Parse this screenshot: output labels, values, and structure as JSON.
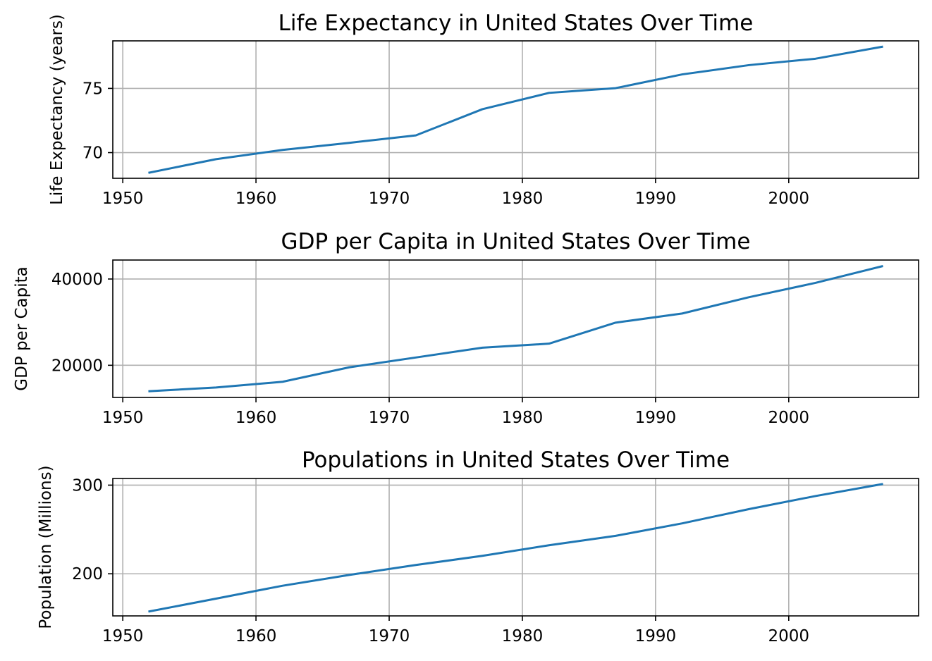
{
  "figure": {
    "background": "#ffffff",
    "line_color": "#1f77b4",
    "grid_color": "#b0b0b0"
  },
  "chart_data": [
    {
      "type": "line",
      "title": "Life Expectancy in United States Over Time",
      "xlabel": "",
      "ylabel": "Life Expectancy (years)",
      "x": [
        1952,
        1957,
        1962,
        1967,
        1972,
        1977,
        1982,
        1987,
        1992,
        1997,
        2002,
        2007
      ],
      "series": [
        {
          "values": [
            68.44,
            69.49,
            70.21,
            70.76,
            71.34,
            73.38,
            74.65,
            75.02,
            76.09,
            76.81,
            77.31,
            78.24
          ]
        }
      ],
      "xlim": [
        1949.25,
        2009.75
      ],
      "ylim": [
        68.0,
        78.7
      ],
      "xticks": [
        1950,
        1960,
        1970,
        1980,
        1990,
        2000
      ],
      "yticks": [
        70,
        75
      ],
      "grid": true,
      "legend": "none"
    },
    {
      "type": "line",
      "title": "GDP per Capita in United States Over Time",
      "xlabel": "",
      "ylabel": "GDP per Capita",
      "x": [
        1952,
        1957,
        1962,
        1967,
        1972,
        1977,
        1982,
        1987,
        1992,
        1997,
        2002,
        2007
      ],
      "series": [
        {
          "values": [
            13990,
            14847,
            16173,
            19530,
            21806,
            24073,
            25010,
            29884,
            32004,
            35767,
            39097,
            42952
          ]
        }
      ],
      "xlim": [
        1949.25,
        2009.75
      ],
      "ylim": [
        12542,
        44400
      ],
      "xticks": [
        1950,
        1960,
        1970,
        1980,
        1990,
        2000
      ],
      "yticks": [
        20000,
        40000
      ],
      "grid": true,
      "legend": "none"
    },
    {
      "type": "line",
      "title": "Populations in United States Over Time",
      "xlabel": "",
      "ylabel": "Population (Millions)",
      "x": [
        1952,
        1957,
        1962,
        1967,
        1972,
        1977,
        1982,
        1987,
        1992,
        1997,
        2002,
        2007
      ],
      "series": [
        {
          "values": [
            157.55,
            171.98,
            186.54,
            198.71,
            209.9,
            220.24,
            232.19,
            242.8,
            256.89,
            272.91,
            287.68,
            301.14
          ]
        }
      ],
      "xlim": [
        1949.25,
        2009.75
      ],
      "ylim": [
        152.5,
        307.5
      ],
      "xticks": [
        1950,
        1960,
        1970,
        1980,
        1990,
        2000
      ],
      "yticks": [
        200,
        300
      ],
      "grid": true,
      "legend": "none"
    }
  ]
}
